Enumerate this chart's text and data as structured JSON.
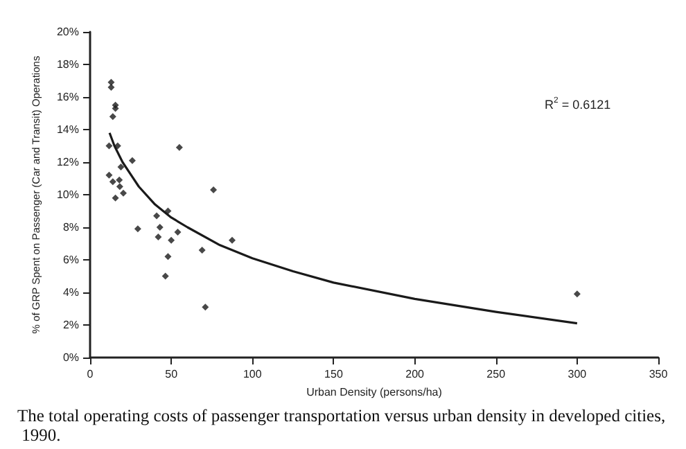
{
  "chart_data": {
    "type": "scatter",
    "xlabel": "Urban Density (persons/ha)",
    "ylabel": "% of GRP Spent on Passenger (Car and Transit) Operations",
    "marker": "diamond",
    "grid": false,
    "xlim": [
      0,
      350
    ],
    "xticks": [
      0,
      50,
      100,
      150,
      200,
      250,
      300,
      350
    ],
    "ylim": [
      0,
      20
    ],
    "yticks": [
      {
        "value": 0,
        "label": "0%"
      },
      {
        "value": 2,
        "label": "2%"
      },
      {
        "value": 4,
        "label": "4%"
      },
      {
        "value": 6,
        "label": "6%"
      },
      {
        "value": 8,
        "label": "8%"
      },
      {
        "value": 10,
        "label": "10%"
      },
      {
        "value": 12,
        "label": "12%"
      },
      {
        "value": 14,
        "label": "14%"
      },
      {
        "value": 16,
        "label": "16%"
      },
      {
        "value": 18,
        "label": "18%"
      },
      {
        "value": 20,
        "label": "20%"
      }
    ],
    "series": [
      {
        "color": "#1a1a1a",
        "x": [
          13,
          13,
          15.6,
          15.6,
          14,
          11.7,
          17,
          11.7,
          14,
          15.6,
          18,
          18.3,
          20.5,
          19,
          26,
          29.4,
          41,
          43,
          42,
          48,
          48,
          46.4,
          50,
          54,
          55,
          69,
          71,
          76,
          87.5,
          300
        ],
        "values": [
          16.9,
          16.6,
          15.5,
          15.3,
          14.8,
          13,
          13,
          11.2,
          10.8,
          9.8,
          10.9,
          10.5,
          10.1,
          11.7,
          12.1,
          7.9,
          8.7,
          8,
          7.4,
          9,
          6.2,
          5,
          7.2,
          7.7,
          12.9,
          6.6,
          3.1,
          10.3,
          7.2,
          3.9
        ]
      },
      {
        "type": "line",
        "color": "#1a1a1a",
        "marker": "none",
        "x": [
          12,
          15,
          20,
          30,
          40,
          50,
          60,
          80,
          100,
          125,
          150,
          200,
          250,
          300
        ],
        "values": [
          13.8,
          13.0,
          12.0,
          10.5,
          9.4,
          8.6,
          8.0,
          6.9,
          6.1,
          5.3,
          4.6,
          3.6,
          2.8,
          2.1
        ]
      }
    ],
    "annotations": [
      "R$^{2}$ = 0.6121",
      "The total operating costs of passenger transportation versus urban density in developed cities, 1990."
    ]
  }
}
